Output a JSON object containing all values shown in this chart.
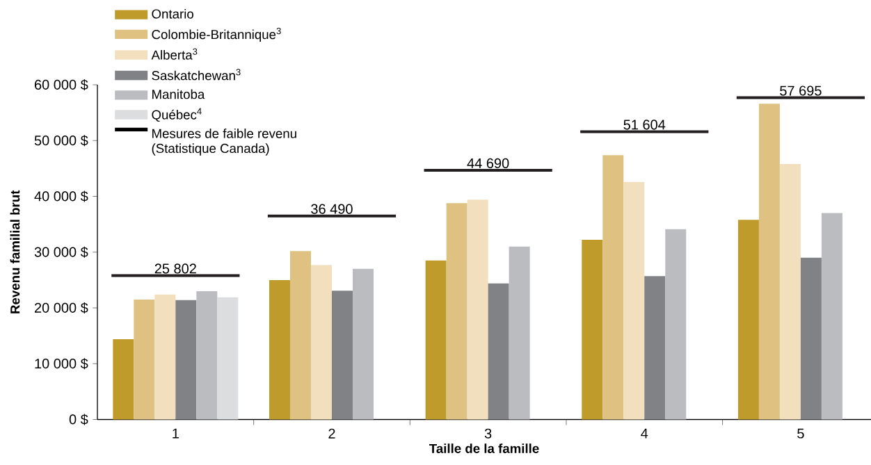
{
  "chart_data": {
    "type": "bar",
    "xlabel": "Taille de la famille",
    "ylabel": "Revenu familial brut",
    "categories": [
      "1",
      "2",
      "3",
      "4",
      "5"
    ],
    "ylim": [
      0,
      60000
    ],
    "yticks": [
      {
        "value": 0,
        "label": "0 $"
      },
      {
        "value": 10000,
        "label": "10 000 $"
      },
      {
        "value": 20000,
        "label": "20 000 $"
      },
      {
        "value": 30000,
        "label": "30 000 $"
      },
      {
        "value": 40000,
        "label": "40 000 $"
      },
      {
        "value": 50000,
        "label": "50 000 $"
      },
      {
        "value": 60000,
        "label": "60 000 $"
      }
    ],
    "legend": "top left",
    "annotations": [
      "Mesures de faible revenu (Statistique Canada)"
    ],
    "series": [
      {
        "name": "Ontario",
        "color": "#bf9b2c",
        "values": [
          14400,
          25000,
          28500,
          32200,
          35800
        ]
      },
      {
        "name": "Colombie-Britannique$^{3}$",
        "color": "#dfc281",
        "values": [
          21500,
          30200,
          38800,
          47400,
          56600
        ]
      },
      {
        "name": "Alberta$^{3}$",
        "color": "#f2dfbd",
        "values": [
          22400,
          27700,
          39400,
          42600,
          45800
        ]
      },
      {
        "name": "Saskatchewan$^{3}$",
        "color": "#818285",
        "values": [
          21400,
          23100,
          24400,
          25700,
          29000
        ]
      },
      {
        "name": "Manitoba",
        "color": "#bbbcc0",
        "values": [
          23000,
          27000,
          31000,
          34100,
          37000
        ]
      },
      {
        "name": "Québec$^{4}$",
        "color": "#dcdddf",
        "values": [
          21900,
          null,
          null,
          null,
          null
        ]
      }
    ],
    "ref_lines": [
      {
        "axis": "y",
        "value": 25802,
        "label": "25 802",
        "color": "#231f20"
      },
      {
        "axis": "y",
        "value": 36490,
        "label": "36 490",
        "color": "#231f20"
      },
      {
        "axis": "y",
        "value": 44690,
        "label": "44 690",
        "color": "#231f20"
      },
      {
        "axis": "y",
        "value": 51604,
        "label": "51 604",
        "color": "#231f20"
      },
      {
        "axis": "y",
        "value": 57695,
        "label": "57 695",
        "color": "#231f20"
      }
    ]
  }
}
